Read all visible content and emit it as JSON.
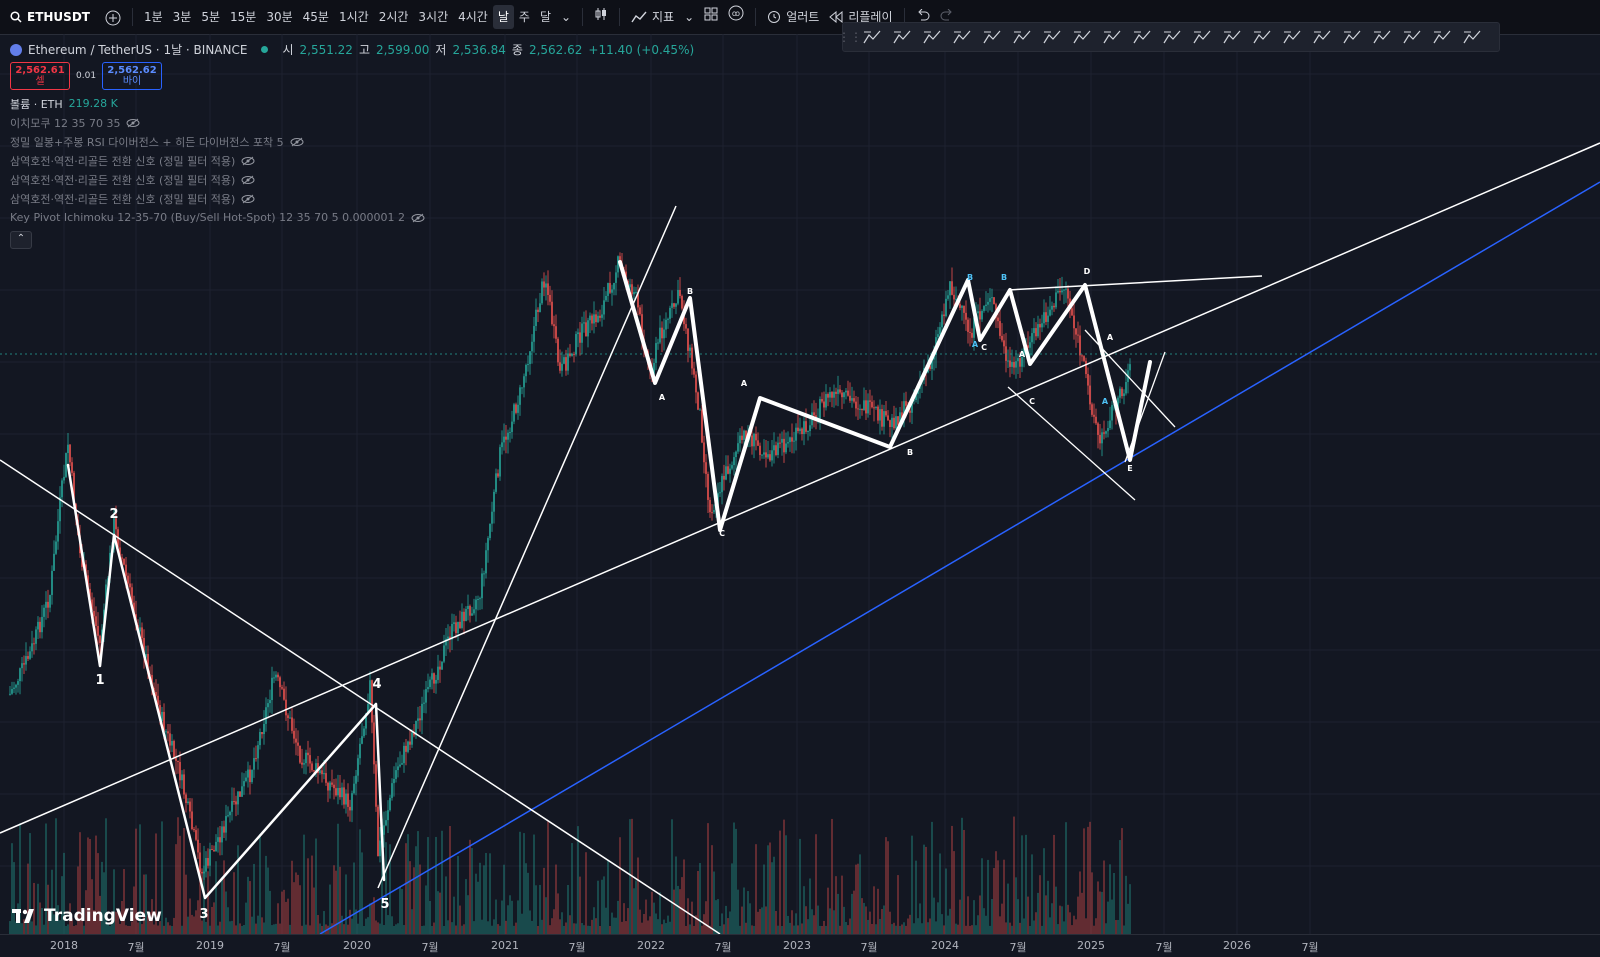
{
  "toolbar": {
    "symbol": "ETHUSDT",
    "intervals": [
      "1분",
      "3분",
      "5분",
      "15분",
      "30분",
      "45분",
      "1시간",
      "2시간",
      "3시간",
      "4시간",
      "날",
      "주",
      "달"
    ],
    "active_interval": "날",
    "indicators_label": "지표",
    "alerts_label": "얼러트",
    "replay_label": "리플레이"
  },
  "legend": {
    "title": "Ethereum / TetherUS · 1날 · BINANCE",
    "o_label": "시",
    "o": "2,551.22",
    "h_label": "고",
    "h": "2,599.00",
    "l_label": "저",
    "l": "2,536.84",
    "c_label": "종",
    "c": "2,562.62",
    "change": "+11.40 (+0.45%)",
    "sell_price": "2,562.61",
    "sell_label": "셀",
    "spread": "0.01",
    "buy_price": "2,562.62",
    "buy_label": "바이",
    "volume_label": "볼륨 · ETH",
    "volume": "219.28 K",
    "indicators": [
      "이치모쿠 12 35 70 35",
      "정밀 일봉+주봉 RSI 다이버전스 + 히든 다이버전스 포착 5",
      "삼역호전·역전·리골든 전환 신호 (정밀 필터 적용)",
      "삼역호전·역전·리골든 전환 신호 (정밀 필터 적용)",
      "삼역호전·역전·리골든 전환 신호 (정밀 필터 적용)",
      "Key Pivot Ichimoku 12-35-70 (Buy/Sell Hot-Spot) 12 35 70 5 0.000001 2"
    ]
  },
  "xaxis": [
    "2018",
    "7월",
    "2019",
    "7월",
    "2020",
    "7월",
    "2021",
    "7월",
    "2022",
    "7월",
    "2023",
    "7월",
    "2024",
    "7월",
    "2025",
    "7월",
    "2026",
    "7월"
  ],
  "wave_labels": [
    "1",
    "2",
    "3",
    "4",
    "5",
    "A",
    "B",
    "C",
    "A",
    "B",
    "C",
    "B",
    "B",
    "A",
    "A",
    "C",
    "D",
    "A",
    "E",
    "A"
  ],
  "brand": "TradingView",
  "colors": {
    "up": "#26a69a",
    "down": "#ef5350",
    "trend_blue": "#2962ff",
    "drawing": "#ffffff"
  }
}
